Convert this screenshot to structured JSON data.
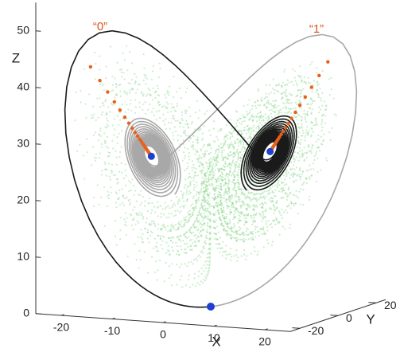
{
  "chart_data": {
    "type": "line3d",
    "annotations": [
      "“0”",
      "“1”"
    ],
    "xlabel": "X",
    "ylabel": "Y",
    "zlabel": "Z",
    "xlim": [
      -25,
      25
    ],
    "ylim": [
      -25,
      25
    ],
    "zlim": [
      0,
      55
    ],
    "xticks": [
      -20,
      -10,
      0,
      10,
      20
    ],
    "yticks": [
      -20,
      0,
      20
    ],
    "zticks": [
      0,
      10,
      20,
      30,
      40,
      50
    ],
    "line_color": "#1a1a1a",
    "mirror_color": "#a8a8a8",
    "scatter_color": "#7fd37f",
    "marker_color": "#e8601c",
    "point_color": "#1f3fd0"
  }
}
